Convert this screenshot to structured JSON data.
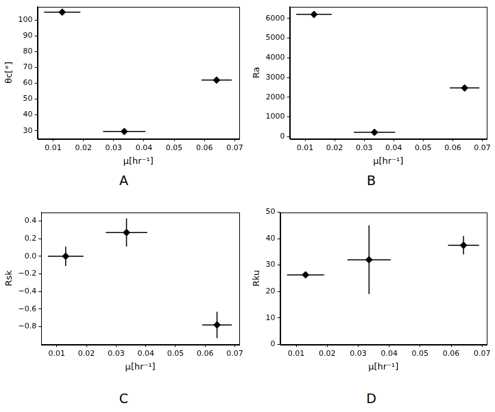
{
  "chart_data": [
    {
      "type": "scatter",
      "title": "A",
      "x_label": "μ[hr⁻¹]",
      "y_label": "θc[°]",
      "x": [
        0.013,
        0.0335,
        0.064
      ],
      "values": [
        105,
        29.5,
        62
      ],
      "xerr": [
        0.006,
        0.007,
        0.005
      ],
      "yerr": [
        1.5,
        1.5,
        1.5
      ],
      "color": "#000000",
      "marker": "diamond",
      "grid": false,
      "xlim": [
        0.0048,
        0.0715
      ],
      "xticks": [
        0.01,
        0.02,
        0.03,
        0.04,
        0.05,
        0.06,
        0.07
      ],
      "ylim": [
        25,
        108.5
      ],
      "yticks": [
        30,
        40,
        50,
        60,
        70,
        80,
        90,
        100
      ]
    },
    {
      "type": "scatter",
      "title": "B",
      "x_label": "μ[hr⁻¹]",
      "y_label": "Ra",
      "x": [
        0.013,
        0.0335,
        0.064
      ],
      "values": [
        6200,
        220,
        2470
      ],
      "xerr": [
        0.006,
        0.007,
        0.005
      ],
      "yerr": [
        100,
        150,
        120
      ],
      "color": "#000000",
      "marker": "diamond",
      "grid": false,
      "xlim": [
        0.0048,
        0.0715
      ],
      "xticks": [
        0.01,
        0.02,
        0.03,
        0.04,
        0.05,
        0.06,
        0.07
      ],
      "ylim": [
        -100,
        6600
      ],
      "yticks": [
        0,
        1000,
        2000,
        3000,
        4000,
        5000,
        6000
      ]
    },
    {
      "type": "scatter",
      "title": "C",
      "x_label": "μ[hr⁻¹]",
      "y_label": "Rsk",
      "x": [
        0.013,
        0.0335,
        0.064
      ],
      "values": [
        0.0,
        0.27,
        -0.78
      ],
      "xerr": [
        0.006,
        0.007,
        0.005
      ],
      "yerr": [
        0.11,
        0.16,
        0.15
      ],
      "color": "#000000",
      "marker": "diamond",
      "grid": false,
      "xlim": [
        0.0048,
        0.0715
      ],
      "xticks": [
        0.01,
        0.02,
        0.03,
        0.04,
        0.05,
        0.06,
        0.07
      ],
      "ylim": [
        -1.0,
        0.5
      ],
      "yticks": [
        {
          "value": -0.8,
          "label": "−0.8"
        },
        {
          "value": -0.6,
          "label": "−0.6"
        },
        {
          "value": -0.4,
          "label": "−0.4"
        },
        {
          "value": -0.2,
          "label": "−0.2"
        },
        {
          "value": 0.0,
          "label": "0.0"
        },
        {
          "value": 0.2,
          "label": "0.2"
        },
        {
          "value": 0.4,
          "label": "0.4"
        }
      ]
    },
    {
      "type": "scatter",
      "title": "D",
      "x_label": "μ[hr⁻¹]",
      "y_label": "Rku",
      "x": [
        0.013,
        0.0335,
        0.064
      ],
      "values": [
        26.3,
        32,
        37.5
      ],
      "xerr": [
        0.006,
        0.007,
        0.005
      ],
      "yerr": [
        1,
        13,
        3.5
      ],
      "color": "#000000",
      "marker": "diamond",
      "grid": false,
      "xlim": [
        0.0048,
        0.0715
      ],
      "xticks": [
        0.01,
        0.02,
        0.03,
        0.04,
        0.05,
        0.06,
        0.07
      ],
      "ylim": [
        0,
        50
      ],
      "yticks": [
        0,
        10,
        20,
        30,
        40,
        50
      ]
    }
  ]
}
